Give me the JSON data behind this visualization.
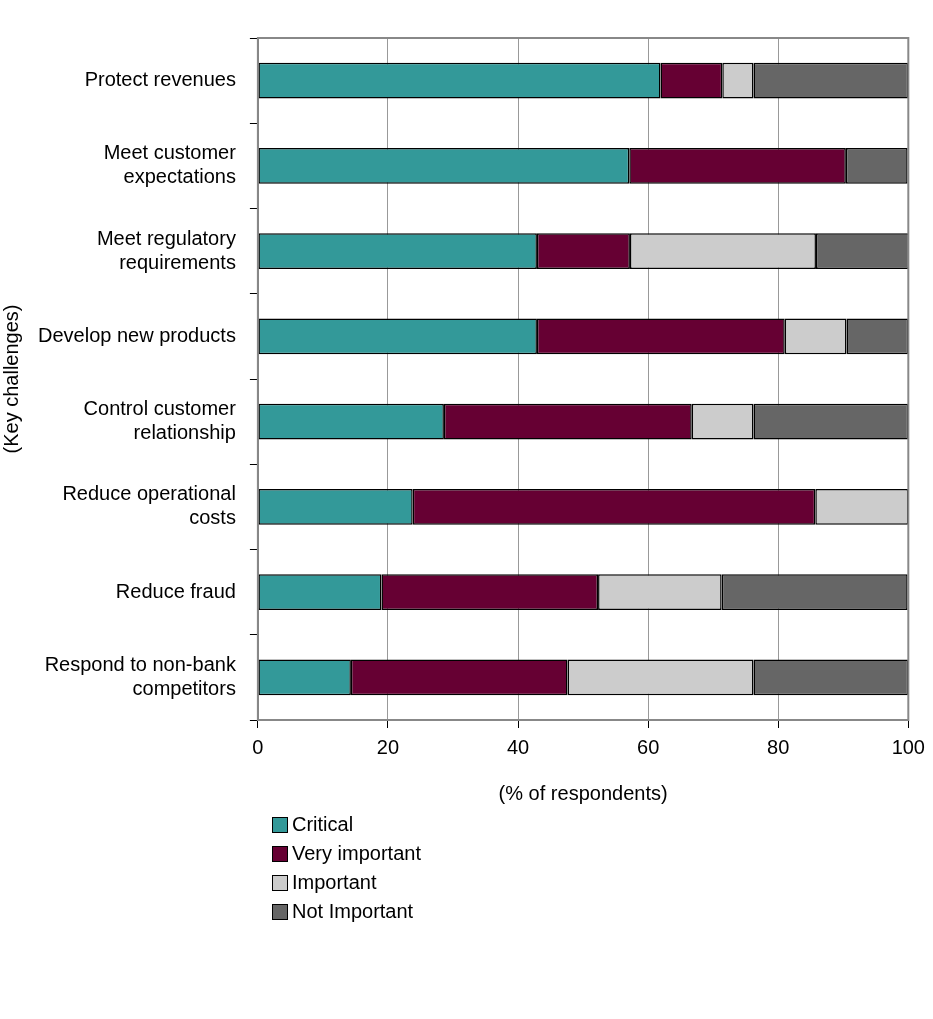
{
  "chart_data": {
    "type": "bar",
    "orientation": "horizontal",
    "stacked": true,
    "xlabel": "(% of respondents)",
    "ylabel": "(Key challenges)",
    "categories": [
      "Protect revenues",
      "Meet customer expectations",
      "Meet regulatory requirements",
      "Develop new products",
      "Control customer relationship",
      "Reduce operational costs",
      "Reduce fraud",
      "Respond to non-bank competitors"
    ],
    "series": [
      {
        "name": "Critical",
        "color": "#339999",
        "values": [
          61.9,
          57.1,
          42.9,
          42.9,
          28.6,
          23.8,
          19.0,
          14.3
        ]
      },
      {
        "name": "Very important",
        "color": "#660033",
        "values": [
          9.5,
          33.3,
          14.3,
          38.1,
          38.1,
          61.9,
          33.3,
          33.3
        ]
      },
      {
        "name": "Important",
        "color": "#cccccc",
        "values": [
          4.8,
          0,
          28.6,
          9.5,
          9.5,
          14.3,
          19.0,
          28.6
        ]
      },
      {
        "name": "Not Important",
        "color": "#666666",
        "values": [
          23.8,
          9.5,
          14.3,
          9.5,
          23.8,
          0,
          28.6,
          23.8
        ]
      }
    ],
    "xlim": [
      0,
      100
    ],
    "xticks": [
      0,
      20,
      40,
      60,
      80,
      100
    ],
    "grid": "x",
    "legend": "bottom"
  }
}
